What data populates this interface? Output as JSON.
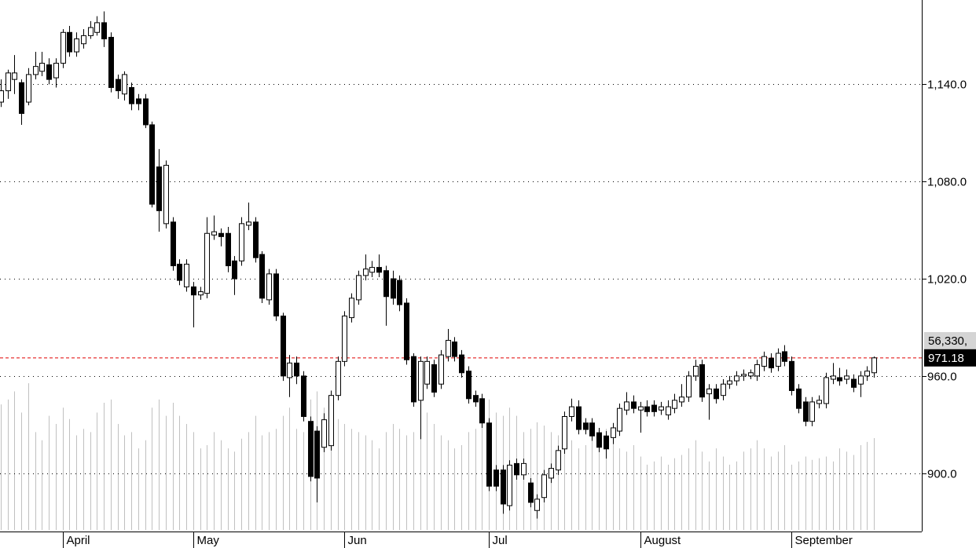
{
  "chart_data": {
    "type": "candlestick",
    "categories": [
      null,
      null,
      null,
      null,
      null,
      null,
      null,
      null,
      null,
      "April",
      null,
      null,
      null,
      null,
      null,
      null,
      null,
      null,
      null,
      null,
      null,
      null,
      null,
      null,
      null,
      null,
      null,
      null,
      "May",
      null,
      null,
      null,
      null,
      null,
      null,
      null,
      null,
      null,
      null,
      null,
      null,
      null,
      null,
      null,
      null,
      null,
      null,
      null,
      null,
      null,
      "Jun",
      null,
      null,
      null,
      null,
      null,
      null,
      null,
      null,
      null,
      null,
      null,
      null,
      null,
      null,
      null,
      null,
      null,
      null,
      null,
      null,
      "Jul",
      null,
      null,
      null,
      null,
      null,
      null,
      null,
      null,
      null,
      null,
      null,
      null,
      null,
      null,
      null,
      null,
      null,
      null,
      null,
      null,
      null,
      "August",
      null,
      null,
      null,
      null,
      null,
      null,
      null,
      null,
      null,
      null,
      null,
      null,
      null,
      null,
      null,
      null,
      null,
      null,
      null,
      null,
      null,
      "September",
      null,
      null,
      null,
      null,
      null,
      null,
      null,
      null,
      null,
      null,
      null,
      null
    ],
    "ohlc": [
      [
        1129,
        1143,
        1126,
        1136
      ],
      [
        1136,
        1149,
        1131,
        1147
      ],
      [
        1143,
        1158,
        1134,
        1147
      ],
      [
        1141,
        1143,
        1115,
        1122
      ],
      [
        1129,
        1150,
        1127,
        1146
      ],
      [
        1146,
        1160,
        1143,
        1151
      ],
      [
        1148,
        1160,
        1145,
        1153
      ],
      [
        1152,
        1156,
        1140,
        1143
      ],
      [
        1144,
        1156,
        1138,
        1153
      ],
      [
        1153,
        1174,
        1150,
        1172
      ],
      [
        1172,
        1176,
        1157,
        1160
      ],
      [
        1160,
        1172,
        1157,
        1168
      ],
      [
        1165,
        1174,
        1162,
        1170
      ],
      [
        1170,
        1179,
        1168,
        1175
      ],
      [
        1172,
        1182,
        1170,
        1178
      ],
      [
        1178,
        1185,
        1163,
        1168
      ],
      [
        1169,
        1172,
        1135,
        1138
      ],
      [
        1143,
        1146,
        1131,
        1136
      ],
      [
        1134,
        1148,
        1130,
        1146
      ],
      [
        1138,
        1141,
        1124,
        1128
      ],
      [
        1131,
        1134,
        1124,
        1128
      ],
      [
        1131,
        1134,
        1113,
        1115
      ],
      [
        1115,
        1117,
        1064,
        1066
      ],
      [
        1089,
        1100,
        1049,
        1062
      ],
      [
        1054,
        1093,
        1051,
        1090
      ],
      [
        1055,
        1058,
        1025,
        1028
      ],
      [
        1029,
        1032,
        1016,
        1019
      ],
      [
        1015,
        1032,
        1012,
        1029
      ],
      [
        1015,
        1018,
        990,
        1010
      ],
      [
        1010,
        1015,
        1007,
        1012
      ],
      [
        1011,
        1058,
        1008,
        1048
      ],
      [
        1047,
        1059,
        1044,
        1049
      ],
      [
        1048,
        1051,
        1040,
        1046
      ],
      [
        1048,
        1052,
        1024,
        1028
      ],
      [
        1031,
        1034,
        1010,
        1020
      ],
      [
        1031,
        1058,
        1028,
        1054
      ],
      [
        1053,
        1067,
        1050,
        1055
      ],
      [
        1055,
        1058,
        1030,
        1033
      ],
      [
        1035,
        1037,
        1005,
        1008
      ],
      [
        1007,
        1026,
        1004,
        1023
      ],
      [
        1023,
        1026,
        994,
        997
      ],
      [
        997,
        999,
        957,
        960
      ],
      [
        959,
        973,
        947,
        968
      ],
      [
        968,
        972,
        955,
        960
      ],
      [
        960,
        963,
        932,
        935
      ],
      [
        932,
        935,
        895,
        898
      ],
      [
        926,
        929,
        882,
        897
      ],
      [
        916,
        937,
        913,
        933
      ],
      [
        917,
        951,
        914,
        948
      ],
      [
        948,
        972,
        945,
        969
      ],
      [
        969,
        1000,
        966,
        997
      ],
      [
        996,
        1011,
        993,
        1008
      ],
      [
        1007,
        1025,
        1004,
        1022
      ],
      [
        1022,
        1035,
        1019,
        1026
      ],
      [
        1024,
        1031,
        1021,
        1027
      ],
      [
        1027,
        1035,
        1021,
        1024
      ],
      [
        1025,
        1028,
        991,
        1009
      ],
      [
        1020,
        1025,
        1004,
        1008
      ],
      [
        1019,
        1022,
        1000,
        1004
      ],
      [
        1005,
        1008,
        967,
        970
      ],
      [
        972,
        974,
        941,
        944
      ],
      [
        945,
        972,
        921,
        969
      ],
      [
        955,
        972,
        952,
        969
      ],
      [
        967,
        970,
        947,
        950
      ],
      [
        955,
        976,
        952,
        973
      ],
      [
        972,
        989,
        969,
        982
      ],
      [
        981,
        984,
        969,
        972
      ],
      [
        973,
        976,
        959,
        962
      ],
      [
        963,
        966,
        943,
        946
      ],
      [
        948,
        951,
        941,
        944
      ],
      [
        946,
        949,
        928,
        931
      ],
      [
        931,
        934,
        889,
        892
      ],
      [
        902,
        905,
        889,
        892
      ],
      [
        902,
        905,
        875,
        881
      ],
      [
        880,
        908,
        877,
        905
      ],
      [
        906,
        909,
        896,
        899
      ],
      [
        899,
        909,
        896,
        906
      ],
      [
        894,
        897,
        879,
        882
      ],
      [
        877,
        887,
        872,
        884
      ],
      [
        885,
        902,
        882,
        899
      ],
      [
        897,
        906,
        894,
        903
      ],
      [
        902,
        917,
        899,
        914
      ],
      [
        915,
        938,
        912,
        935
      ],
      [
        935,
        946,
        932,
        941
      ],
      [
        941,
        945,
        924,
        927
      ],
      [
        931,
        934,
        924,
        927
      ],
      [
        931,
        934,
        920,
        923
      ],
      [
        925,
        928,
        913,
        916
      ],
      [
        923,
        926,
        909,
        915
      ],
      [
        922,
        931,
        918,
        928
      ],
      [
        926,
        943,
        923,
        940
      ],
      [
        939,
        950,
        936,
        944
      ],
      [
        944,
        948,
        937,
        940
      ],
      [
        939,
        944,
        925,
        941
      ],
      [
        941,
        945,
        935,
        938
      ],
      [
        942,
        945,
        935,
        938
      ],
      [
        939,
        944,
        936,
        941
      ],
      [
        936,
        945,
        933,
        941
      ],
      [
        940,
        949,
        937,
        945
      ],
      [
        944,
        955,
        941,
        947
      ],
      [
        947,
        963,
        944,
        960
      ],
      [
        960,
        970,
        957,
        966
      ],
      [
        967,
        970,
        944,
        947
      ],
      [
        949,
        955,
        933,
        952
      ],
      [
        952,
        955,
        943,
        946
      ],
      [
        948,
        958,
        945,
        955
      ],
      [
        955,
        960,
        952,
        957
      ],
      [
        957,
        963,
        954,
        960
      ],
      [
        960,
        964,
        957,
        961
      ],
      [
        960,
        964,
        958,
        962
      ],
      [
        960,
        970,
        957,
        967
      ],
      [
        966,
        975,
        963,
        972
      ],
      [
        971,
        974,
        962,
        965
      ],
      [
        966,
        977,
        963,
        974
      ],
      [
        975,
        979,
        966,
        969
      ],
      [
        969,
        972,
        948,
        951
      ],
      [
        952,
        955,
        937,
        940
      ],
      [
        944,
        947,
        929,
        932
      ],
      [
        932,
        947,
        929,
        944
      ],
      [
        943,
        948,
        940,
        945
      ],
      [
        943,
        962,
        940,
        959
      ],
      [
        958,
        968,
        955,
        960
      ],
      [
        959,
        965,
        954,
        957
      ],
      [
        958,
        964,
        955,
        960
      ],
      [
        958,
        961,
        950,
        953
      ],
      [
        955,
        963,
        947,
        960
      ],
      [
        960,
        966,
        957,
        963
      ],
      [
        962,
        972,
        959,
        971.18
      ]
    ],
    "volume": [
      77000,
      80000,
      85000,
      72000,
      90000,
      60000,
      55000,
      70000,
      65000,
      75000,
      68000,
      58000,
      62000,
      60000,
      72000,
      78000,
      80000,
      65000,
      58000,
      60000,
      50000,
      55000,
      75000,
      80000,
      70000,
      78000,
      70000,
      65000,
      60000,
      50000,
      52000,
      60000,
      55000,
      50000,
      48000,
      56000,
      60000,
      70000,
      58000,
      60000,
      62000,
      70000,
      75000,
      62000,
      60000,
      80000,
      85000,
      75000,
      70000,
      68000,
      65000,
      62000,
      60000,
      58000,
      55000,
      50000,
      60000,
      65000,
      62000,
      58000,
      60000,
      70000,
      72000,
      65000,
      58000,
      55000,
      50000,
      52000,
      60000,
      62000,
      65000,
      80000,
      72000,
      70000,
      75000,
      70000,
      60000,
      62000,
      66000,
      64000,
      60000,
      58000,
      62000,
      55000,
      50000,
      52000,
      58000,
      60000,
      62000,
      55000,
      50000,
      48000,
      52000,
      45000,
      40000,
      42000,
      45000,
      40000,
      44000,
      46000,
      50000,
      55000,
      48000,
      42000,
      50000,
      45000,
      40000,
      42000,
      48000,
      50000,
      55000,
      50000,
      45000,
      48000,
      52000,
      40000,
      42000,
      45000,
      43000,
      44000,
      45000,
      42000,
      50000,
      48000,
      46000,
      52000,
      54000,
      56330
    ],
    "volume_ylim": [
      0,
      325000
    ],
    "last_volume_label": "56,330,",
    "last_price": 971.18,
    "ylim": [
      865,
      1192
    ],
    "yticks": [
      {
        "value": 900,
        "label": "900.0"
      },
      {
        "value": 960,
        "label": "960.0"
      },
      {
        "value": 1020,
        "label": "1,020.0"
      },
      {
        "value": 1080,
        "label": "1,080.0"
      },
      {
        "value": 1140,
        "label": "1,140.0"
      }
    ],
    "grid": true,
    "up_color": "#ffffff",
    "down_color": "#000000",
    "volume_color": "#c0c0c0",
    "last_price_line_color": "#e00000"
  }
}
